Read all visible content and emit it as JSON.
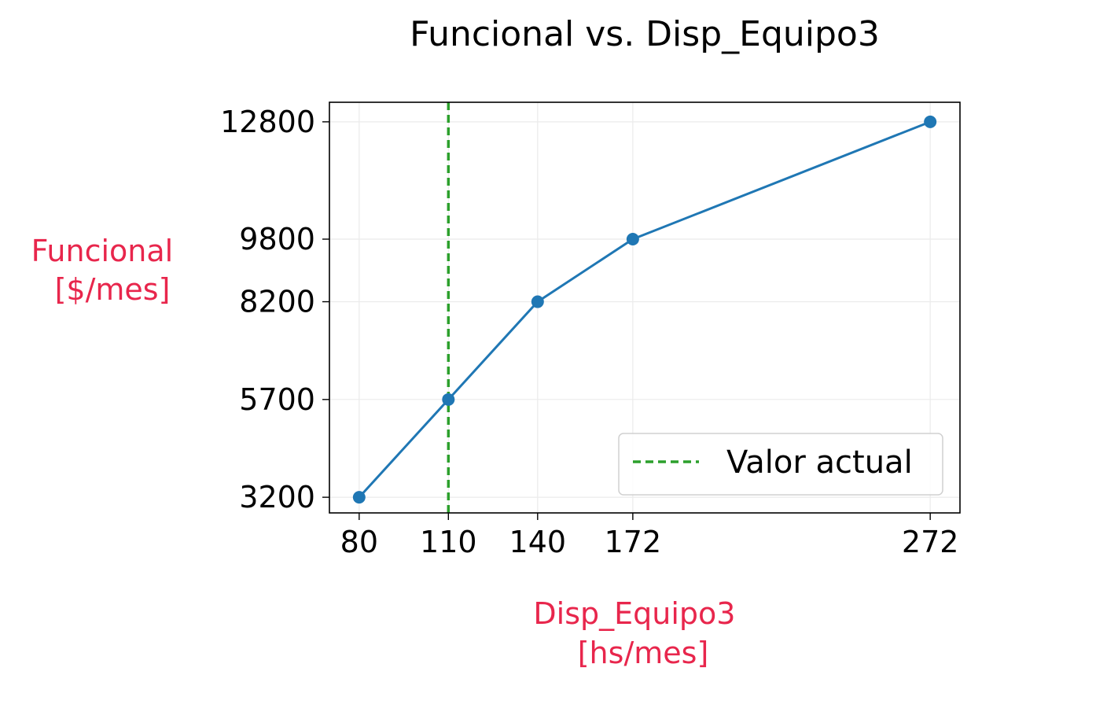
{
  "chart_data": {
    "type": "line",
    "title": "Funcional vs. Disp_Equipo3",
    "xlabel": [
      "Disp_Equipo3",
      "[hs/mes]"
    ],
    "ylabel": [
      "Funcional",
      "[$/mes]"
    ],
    "axis_label_color": "#e8264c",
    "x": [
      80,
      110,
      140,
      172,
      272
    ],
    "series": [
      {
        "values": [
          3200,
          5700,
          8200,
          9800,
          12800
        ],
        "color": "#1f77b4",
        "marker": "circle"
      }
    ],
    "x_ticks": [
      80,
      110,
      140,
      172,
      272
    ],
    "y_ticks": [
      3200,
      5700,
      8200,
      9800,
      12800
    ],
    "xlim": [
      70,
      282
    ],
    "ylim": [
      2800,
      13300
    ],
    "grid": true,
    "reference_line": {
      "x": 110,
      "label": "Valor actual",
      "color": "#2ca02c",
      "style": "dashed"
    },
    "legend_position": "lower right"
  }
}
